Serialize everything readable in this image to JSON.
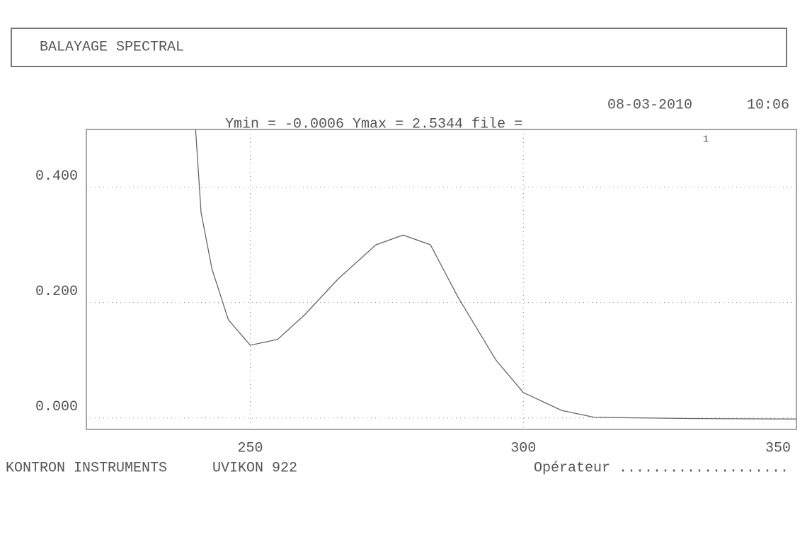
{
  "header": {
    "title": "BALAYAGE SPECTRAL",
    "date": "08-03-2010",
    "time": "10:06"
  },
  "chart_data": {
    "type": "line",
    "subtitle": "Ymin = -0.0006 Ymax = 2.5344  file =",
    "x": [
      240,
      241,
      243,
      246,
      250,
      255,
      260,
      266,
      273,
      278,
      283,
      288,
      295,
      300,
      307,
      313,
      330,
      350
    ],
    "series": [
      {
        "name": "1",
        "color": "#666666",
        "values": [
          0.5,
          0.356,
          0.258,
          0.17,
          0.126,
          0.136,
          0.179,
          0.24,
          0.3,
          0.317,
          0.3,
          0.21,
          0.1,
          0.044,
          0.013,
          0.001,
          -0.001,
          -0.002
        ]
      }
    ],
    "xlim": [
      220,
      350
    ],
    "xticks": [
      250,
      300,
      350
    ],
    "ylim": [
      -0.02,
      0.5
    ],
    "yticks": [
      {
        "value": 0,
        "label": "0.000"
      },
      {
        "value": 0.2,
        "label": "0.200"
      },
      {
        "value": 0.4,
        "label": "0.400"
      }
    ],
    "grid": true
  },
  "footer": {
    "maker": "KONTRON INSTRUMENTS",
    "model": "UVIKON  922",
    "operator": "Opérateur ...................."
  }
}
